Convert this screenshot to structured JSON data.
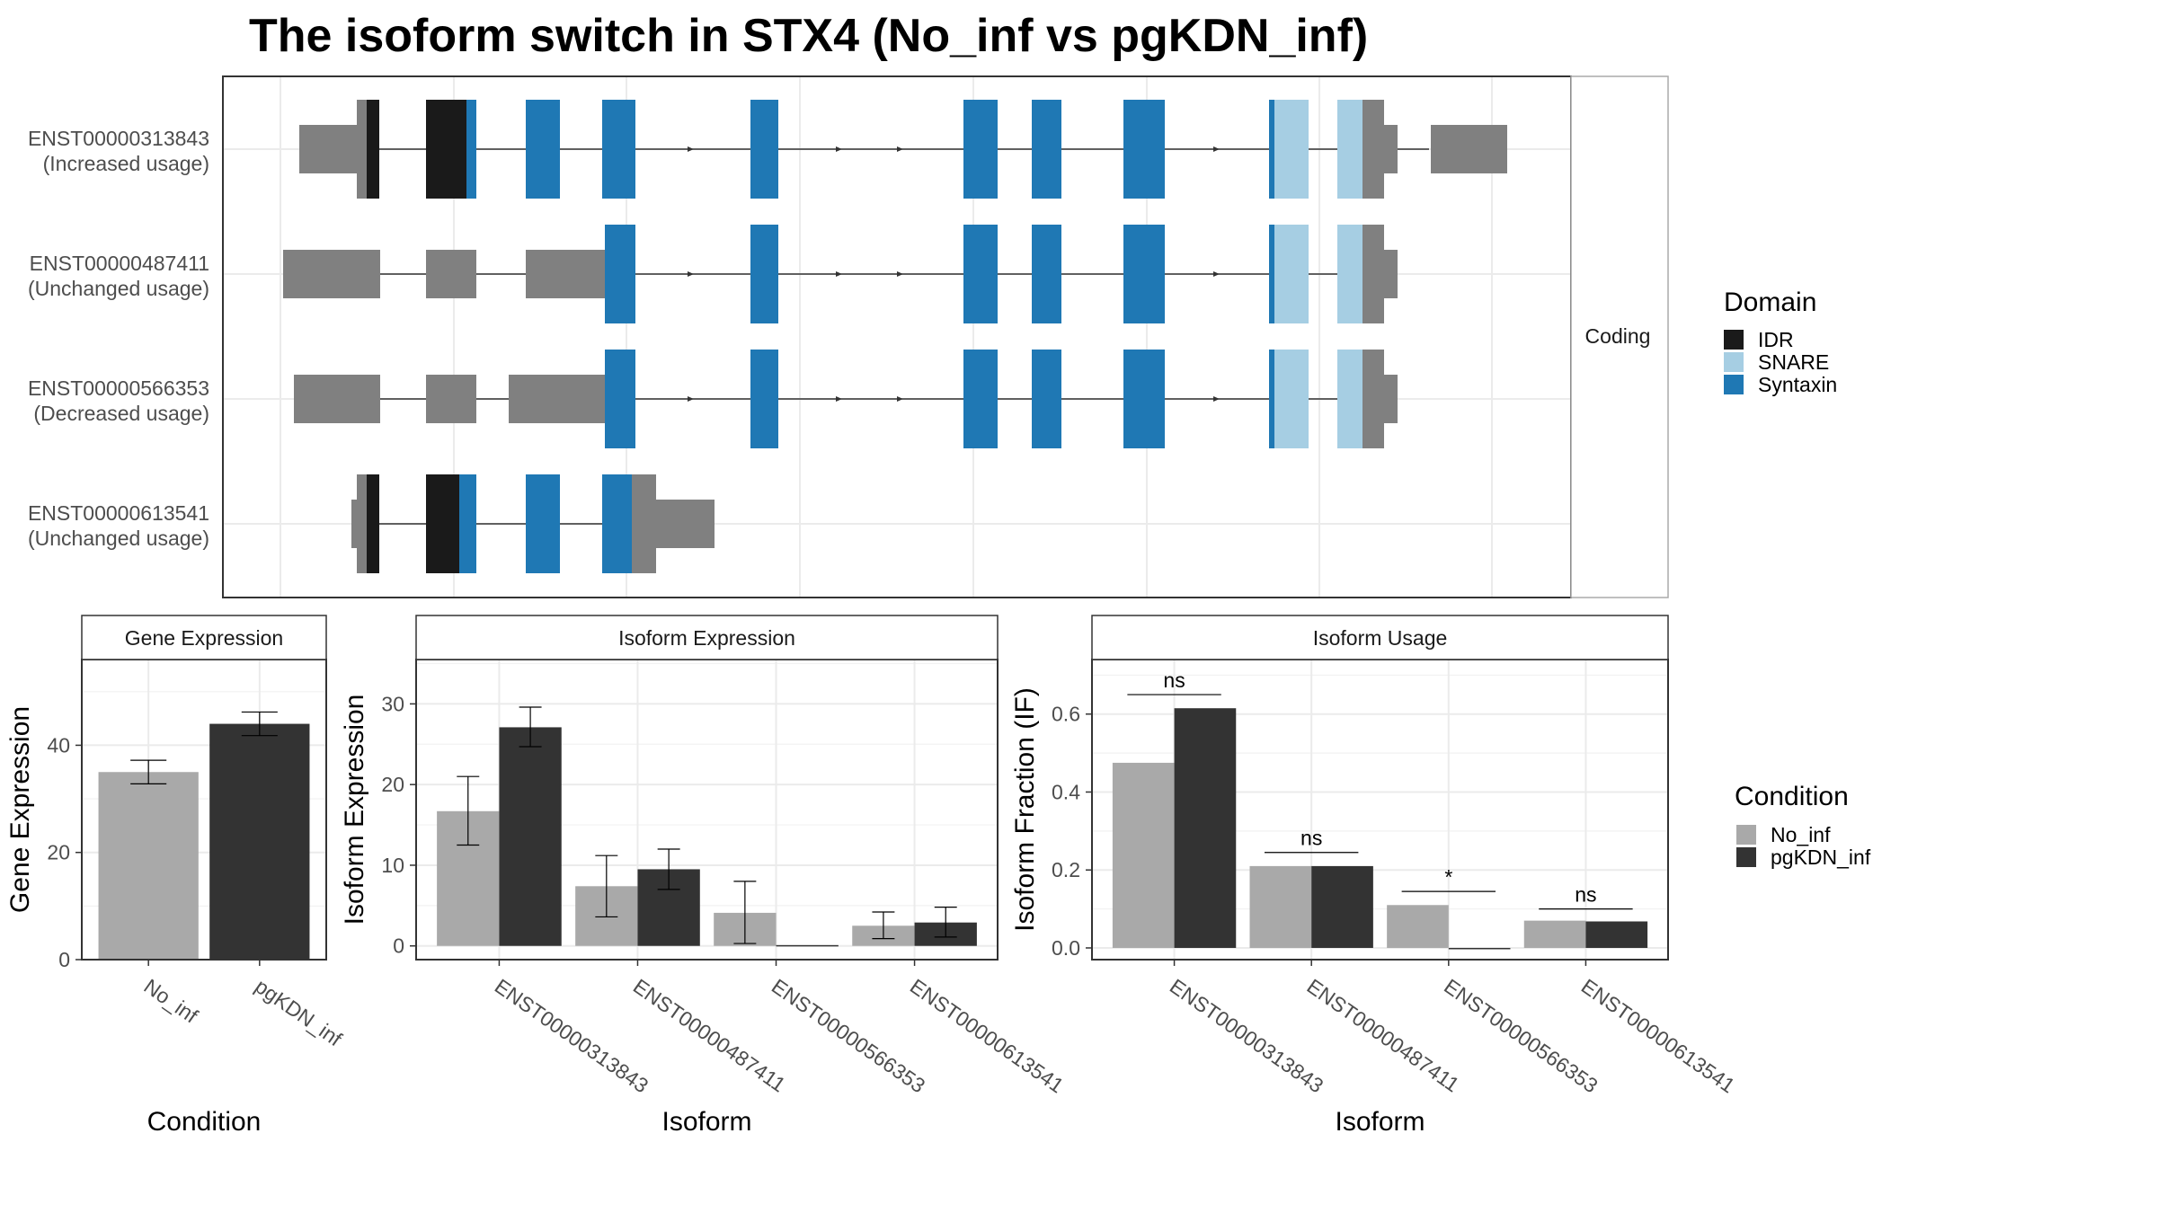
{
  "title": "The isoform switch in STX4 (No_inf vs pgKDN_inf)",
  "colors": {
    "IDR": "#1a1a1a",
    "SNARE": "#a6cee3",
    "Syntaxin": "#1f78b4",
    "utr": "#808080",
    "No_inf": "#a9a9a9",
    "pgKDN_inf": "#333333"
  },
  "chart_data": [
    {
      "type": "gene-structure",
      "strip_label": "Coding",
      "legend_title": "Domain",
      "legend": [
        "IDR",
        "SNARE",
        "Syntaxin"
      ],
      "isoforms": [
        {
          "id": "ENST00000313843",
          "usage": "(Increased usage)"
        },
        {
          "id": "ENST00000487411",
          "usage": "(Unchanged usage)"
        },
        {
          "id": "ENST00000566353",
          "usage": "(Decreased usage)"
        },
        {
          "id": "ENST00000613541",
          "usage": "(Unchanged usage)"
        }
      ]
    },
    {
      "type": "bar",
      "panel_title": "Gene Expression",
      "xlabel": "Condition",
      "ylabel": "Gene Expression",
      "categories": [
        "No_inf",
        "pgKDN_inf"
      ],
      "values": [
        35,
        44
      ],
      "errors": [
        [
          32.8,
          37.2
        ],
        [
          41.8,
          46.2
        ]
      ],
      "ylim": [
        0,
        56
      ],
      "yticks": [
        0,
        20,
        40
      ]
    },
    {
      "type": "bar",
      "panel_title": "Isoform Expression",
      "xlabel": "Isoform",
      "ylabel": "Isoform Expression",
      "categories": [
        "ENST00000313843",
        "ENST00000487411",
        "ENST00000566353",
        "ENST00000613541"
      ],
      "series": [
        {
          "name": "No_inf",
          "values": [
            16.7,
            7.4,
            4.1,
            2.5
          ],
          "errors": [
            [
              12.5,
              21.0
            ],
            [
              3.6,
              11.2
            ],
            [
              0.3,
              8.0
            ],
            [
              0.9,
              4.2
            ]
          ]
        },
        {
          "name": "pgKDN_inf",
          "values": [
            27.1,
            9.5,
            0.1,
            2.9
          ],
          "errors": [
            [
              24.7,
              29.6
            ],
            [
              7.0,
              12.0
            ],
            null,
            [
              1.1,
              4.8
            ]
          ]
        }
      ],
      "ylim": [
        -1.7,
        35.5
      ],
      "yticks": [
        0,
        10,
        20,
        30
      ]
    },
    {
      "type": "bar",
      "panel_title": "Isoform Usage",
      "xlabel": "Isoform",
      "ylabel": "Isoform Fraction (IF)",
      "categories": [
        "ENST00000313843",
        "ENST00000487411",
        "ENST00000566353",
        "ENST00000613541"
      ],
      "series": [
        {
          "name": "No_inf",
          "values": [
            0.475,
            0.21,
            0.11,
            0.07
          ]
        },
        {
          "name": "pgKDN_inf",
          "values": [
            0.615,
            0.21,
            0.0,
            0.068
          ]
        }
      ],
      "significance": [
        "ns",
        "ns",
        "*",
        "ns"
      ],
      "sig_heights": [
        0.65,
        0.245,
        0.145,
        0.1
      ],
      "ylim": [
        -0.03,
        0.74
      ],
      "yticks": [
        0.0,
        0.2,
        0.4,
        0.6
      ],
      "legend_title": "Condition",
      "legend": [
        "No_inf",
        "pgKDN_inf"
      ]
    }
  ]
}
